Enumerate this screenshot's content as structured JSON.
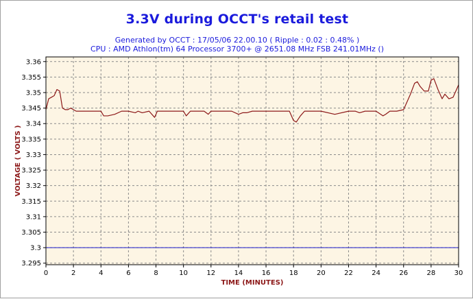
{
  "chart_data": {
    "type": "line",
    "title": "3.3V during OCCT's retail test",
    "subtitle_1": "Generated by OCCT : 17/05/06 22.00.10 ( Ripple : 0.02 : 0.48% )",
    "subtitle_2": "CPU : AMD Athlon(tm) 64 Processor 3700+ @ 2651.08 MHz FSB 241.01MHz ()",
    "xlabel": "TIME (MINUTES)",
    "ylabel": "VOLTAGE ( VOLTS )",
    "xlim": [
      0,
      30
    ],
    "ylim": [
      3.2945,
      3.3615
    ],
    "x_ticks": [
      0,
      2,
      4,
      6,
      8,
      10,
      12,
      14,
      16,
      18,
      20,
      22,
      24,
      26,
      28,
      30
    ],
    "y_ticks": [
      "3.295",
      "3.3",
      "3.305",
      "3.31",
      "3.315",
      "3.32",
      "3.325",
      "3.33",
      "3.335",
      "3.34",
      "3.345",
      "3.35",
      "3.355",
      "3.36"
    ],
    "grid": true,
    "colors": {
      "plot_background": "#fdf5e4",
      "grid": "#8a8a8a",
      "series": "#8c1818",
      "reference": "#1a1acc",
      "title": "#1a1adc",
      "axis_label": "#8c1818"
    },
    "reference_line": {
      "y": 3.3
    },
    "series": [
      {
        "x": [
          0,
          0.2,
          0.4,
          0.6,
          0.8,
          1.0,
          1.2,
          1.4,
          1.6,
          1.8,
          2.0,
          2.2,
          2.5,
          3.0,
          3.5,
          4.0,
          4.2,
          4.5,
          5.0,
          5.5,
          6.0,
          6.5,
          6.7,
          7.0,
          7.5,
          7.9,
          8.1,
          8.4,
          9.0,
          9.5,
          10.0,
          10.2,
          10.5,
          11.0,
          11.5,
          11.8,
          12.0,
          12.5,
          13.0,
          13.5,
          14.0,
          14.3,
          14.6,
          15.0,
          16.0,
          17.0,
          17.7,
          18.0,
          18.2,
          18.5,
          18.8,
          19.0,
          20.0,
          21.0,
          22.0,
          22.5,
          22.8,
          23.2,
          24.0,
          24.5,
          24.7,
          25.0,
          25.5,
          26.0,
          26.2,
          26.5,
          26.8,
          27.0,
          27.2,
          27.5,
          27.8,
          28.0,
          28.2,
          28.5,
          28.8,
          29.0,
          29.3,
          29.6,
          30.0
        ],
        "values": [
          3.3445,
          3.348,
          3.3485,
          3.349,
          3.351,
          3.3505,
          3.345,
          3.3445,
          3.3445,
          3.345,
          3.3445,
          3.344,
          3.344,
          3.344,
          3.344,
          3.344,
          3.3425,
          3.3425,
          3.343,
          3.344,
          3.344,
          3.3435,
          3.344,
          3.3435,
          3.344,
          3.342,
          3.344,
          3.344,
          3.344,
          3.344,
          3.344,
          3.3425,
          3.344,
          3.344,
          3.344,
          3.343,
          3.344,
          3.344,
          3.344,
          3.344,
          3.343,
          3.3435,
          3.3435,
          3.344,
          3.344,
          3.344,
          3.344,
          3.341,
          3.3405,
          3.3425,
          3.344,
          3.344,
          3.344,
          3.343,
          3.344,
          3.344,
          3.3435,
          3.344,
          3.344,
          3.3425,
          3.343,
          3.344,
          3.344,
          3.3445,
          3.3465,
          3.3495,
          3.353,
          3.3535,
          3.352,
          3.3505,
          3.3505,
          3.354,
          3.3545,
          3.351,
          3.348,
          3.3495,
          3.348,
          3.3485,
          3.3525
        ]
      }
    ]
  }
}
